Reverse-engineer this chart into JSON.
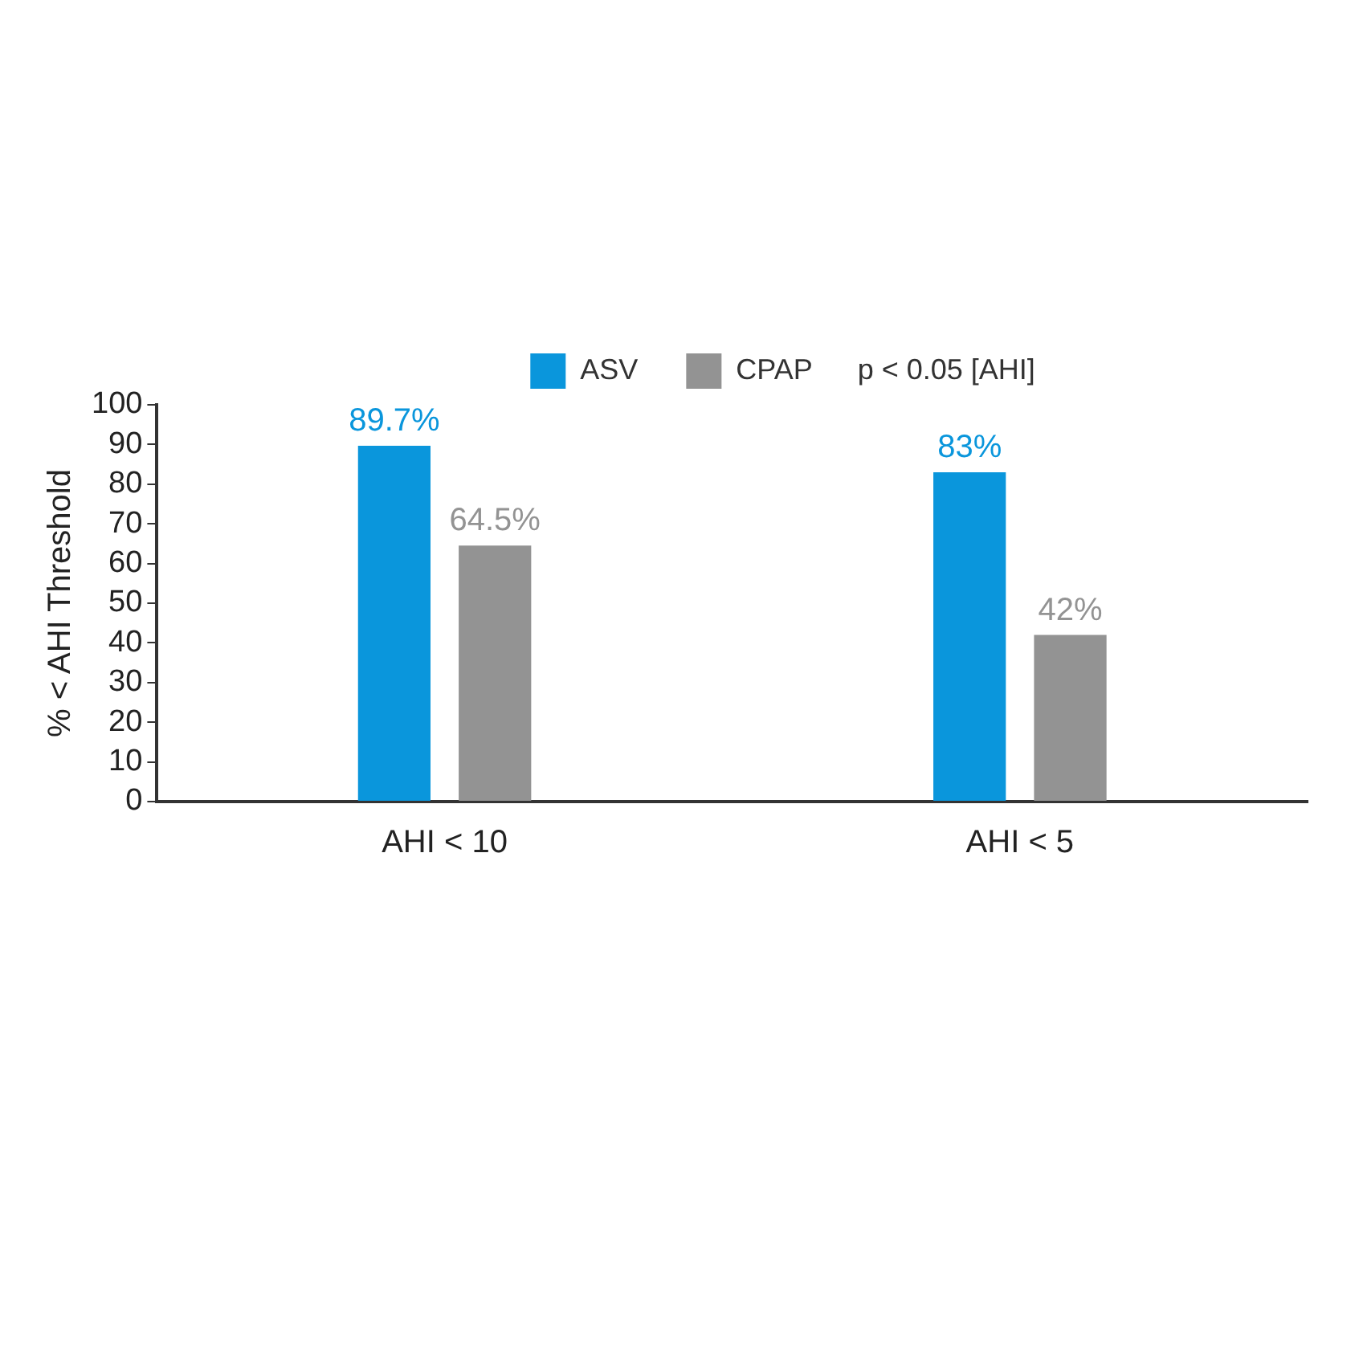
{
  "chart_data": {
    "type": "bar",
    "ylabel": "% < AHI Threshold",
    "categories": [
      "AHI < 10",
      "AHI < 5"
    ],
    "series": [
      {
        "name": "ASV",
        "color": "#0a96dc",
        "values": [
          89.7,
          83
        ],
        "value_labels": [
          "89.7%",
          "83%"
        ]
      },
      {
        "name": "CPAP",
        "color": "#939393",
        "values": [
          64.5,
          42
        ],
        "value_labels": [
          "64.5%",
          "42%"
        ]
      }
    ],
    "ylim": [
      0,
      100
    ],
    "yticks": [
      0,
      10,
      20,
      30,
      40,
      50,
      60,
      70,
      80,
      90,
      100
    ],
    "grid": false,
    "legend": "top",
    "annotations": [
      "p < 0.05 [AHI]"
    ]
  }
}
